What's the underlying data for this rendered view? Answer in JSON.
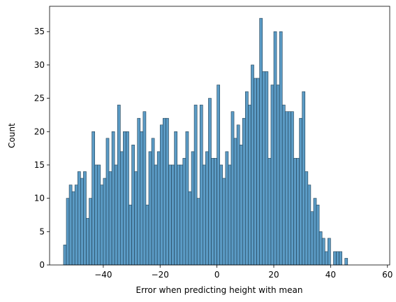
{
  "chart_data": {
    "type": "bar",
    "subtype": "histogram",
    "xlabel": "Error when predicting height with mean",
    "ylabel": "Count",
    "xlim": [
      -58.9,
      60.8
    ],
    "ylim": [
      0,
      38.8
    ],
    "bin_start": -54.0,
    "bin_width": 1.0,
    "values": [
      3,
      10,
      12,
      11,
      12,
      14,
      13,
      14,
      7,
      10,
      20,
      15,
      15,
      12,
      13,
      19,
      14,
      20,
      15,
      24,
      17,
      20,
      20,
      9,
      18,
      14,
      22,
      20,
      23,
      9,
      17,
      19,
      15,
      17,
      21,
      22,
      22,
      15,
      15,
      20,
      15,
      15,
      16,
      20,
      11,
      17,
      24,
      10,
      24,
      15,
      17,
      25,
      16,
      16,
      27,
      15,
      13,
      17,
      15,
      23,
      19,
      21,
      18,
      22,
      26,
      24,
      30,
      28,
      28,
      37,
      29,
      29,
      16,
      27,
      35,
      27,
      35,
      24,
      23,
      23,
      23,
      16,
      16,
      22,
      26,
      14,
      12,
      8,
      10,
      9,
      5,
      4,
      2,
      4,
      0,
      2,
      2,
      2,
      0,
      1
    ],
    "xticks": [
      -40,
      -20,
      0,
      20,
      40,
      60
    ],
    "yticks": [
      0,
      5,
      10,
      15,
      20,
      25,
      30,
      35
    ],
    "legend": null,
    "grid": false,
    "colors": {
      "bar_fill": "#5b9bc5",
      "bar_edge": "#1f3e52",
      "axis": "#000000"
    }
  }
}
